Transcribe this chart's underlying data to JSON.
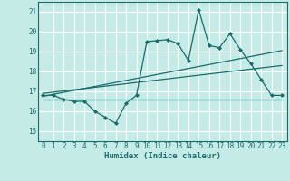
{
  "xlabel": "Humidex (Indice chaleur)",
  "bg_color": "#c5ebe6",
  "grid_color": "#ffffff",
  "line_color": "#1a6b6b",
  "ylim": [
    14.5,
    21.5
  ],
  "xlim": [
    -0.5,
    23.5
  ],
  "yticks": [
    15,
    16,
    17,
    18,
    19,
    20,
    21
  ],
  "xticks": [
    0,
    1,
    2,
    3,
    4,
    5,
    6,
    7,
    8,
    9,
    10,
    11,
    12,
    13,
    14,
    15,
    16,
    17,
    18,
    19,
    20,
    21,
    22,
    23
  ],
  "main_line_x": [
    0,
    1,
    2,
    3,
    4,
    5,
    6,
    7,
    8,
    9,
    10,
    11,
    12,
    13,
    14,
    15,
    16,
    17,
    18,
    19,
    20,
    21,
    22,
    23
  ],
  "main_line_y": [
    16.8,
    16.8,
    16.6,
    16.5,
    16.5,
    16.0,
    15.7,
    15.4,
    16.4,
    16.8,
    19.5,
    19.55,
    19.6,
    19.4,
    18.55,
    21.1,
    19.3,
    19.2,
    19.9,
    19.1,
    18.4,
    17.6,
    16.8,
    16.8
  ],
  "flat_line_x": [
    0,
    23
  ],
  "flat_line_y": [
    16.6,
    16.6
  ],
  "trend_line1_x": [
    0,
    23
  ],
  "trend_line1_y": [
    16.75,
    19.05
  ],
  "trend_line2_x": [
    0,
    23
  ],
  "trend_line2_y": [
    16.9,
    18.3
  ]
}
